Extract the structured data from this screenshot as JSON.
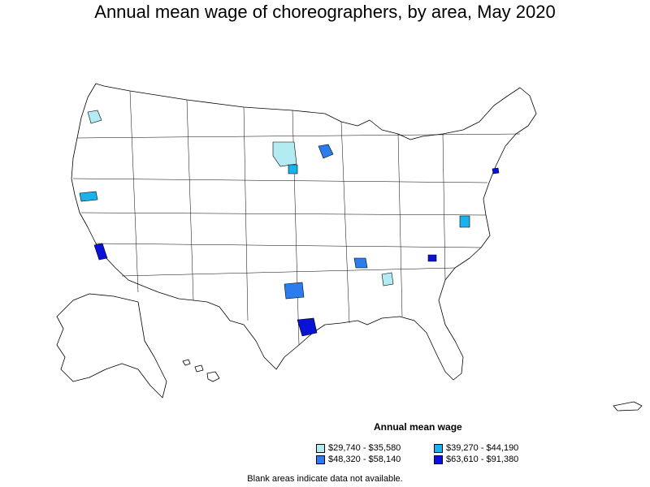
{
  "title": "Annual mean wage of choreographers, by area, May 2020",
  "legend": {
    "title": "Annual mean wage",
    "items": [
      {
        "label": "$29,740 - $35,580",
        "color": "#b2ebf2"
      },
      {
        "label": "$39,270 - $44,190",
        "color": "#1ab2ea"
      },
      {
        "label": "$48,320 - $58,140",
        "color": "#2b7ded"
      },
      {
        "label": "$63,610 - $91,380",
        "color": "#0a12d8"
      }
    ]
  },
  "footnote": "Blank areas indicate data not available."
}
